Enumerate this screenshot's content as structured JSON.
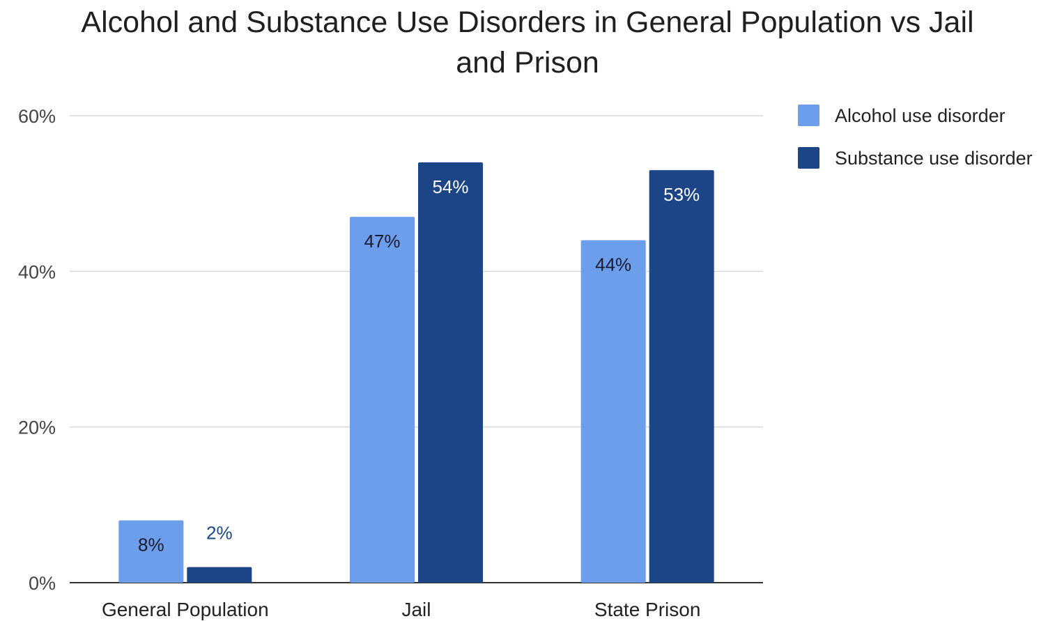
{
  "chart_data": {
    "type": "bar",
    "title_lines": [
      "Alcohol and Substance Use Disorders in General Population vs Jail",
      "and Prison"
    ],
    "categories": [
      "General Population",
      "Jail",
      "State Prison"
    ],
    "series": [
      {
        "name": "Alcohol use disorder",
        "color": "#6d9eeb",
        "values": [
          8,
          47,
          44
        ],
        "labels": [
          "8%",
          "47%",
          "44%"
        ]
      },
      {
        "name": "Substance use disorder",
        "color": "#1c4587",
        "values": [
          2,
          54,
          53
        ],
        "labels": [
          "2%",
          "54%",
          "53%"
        ]
      }
    ],
    "ylim": [
      0,
      60
    ],
    "yticks": [
      {
        "value": 0,
        "label": "0%"
      },
      {
        "value": 20,
        "label": "20%"
      },
      {
        "value": 40,
        "label": "40%"
      },
      {
        "value": 60,
        "label": "60%"
      }
    ],
    "grid": true,
    "legend_position": "top-right",
    "xlabel": "",
    "ylabel": ""
  }
}
